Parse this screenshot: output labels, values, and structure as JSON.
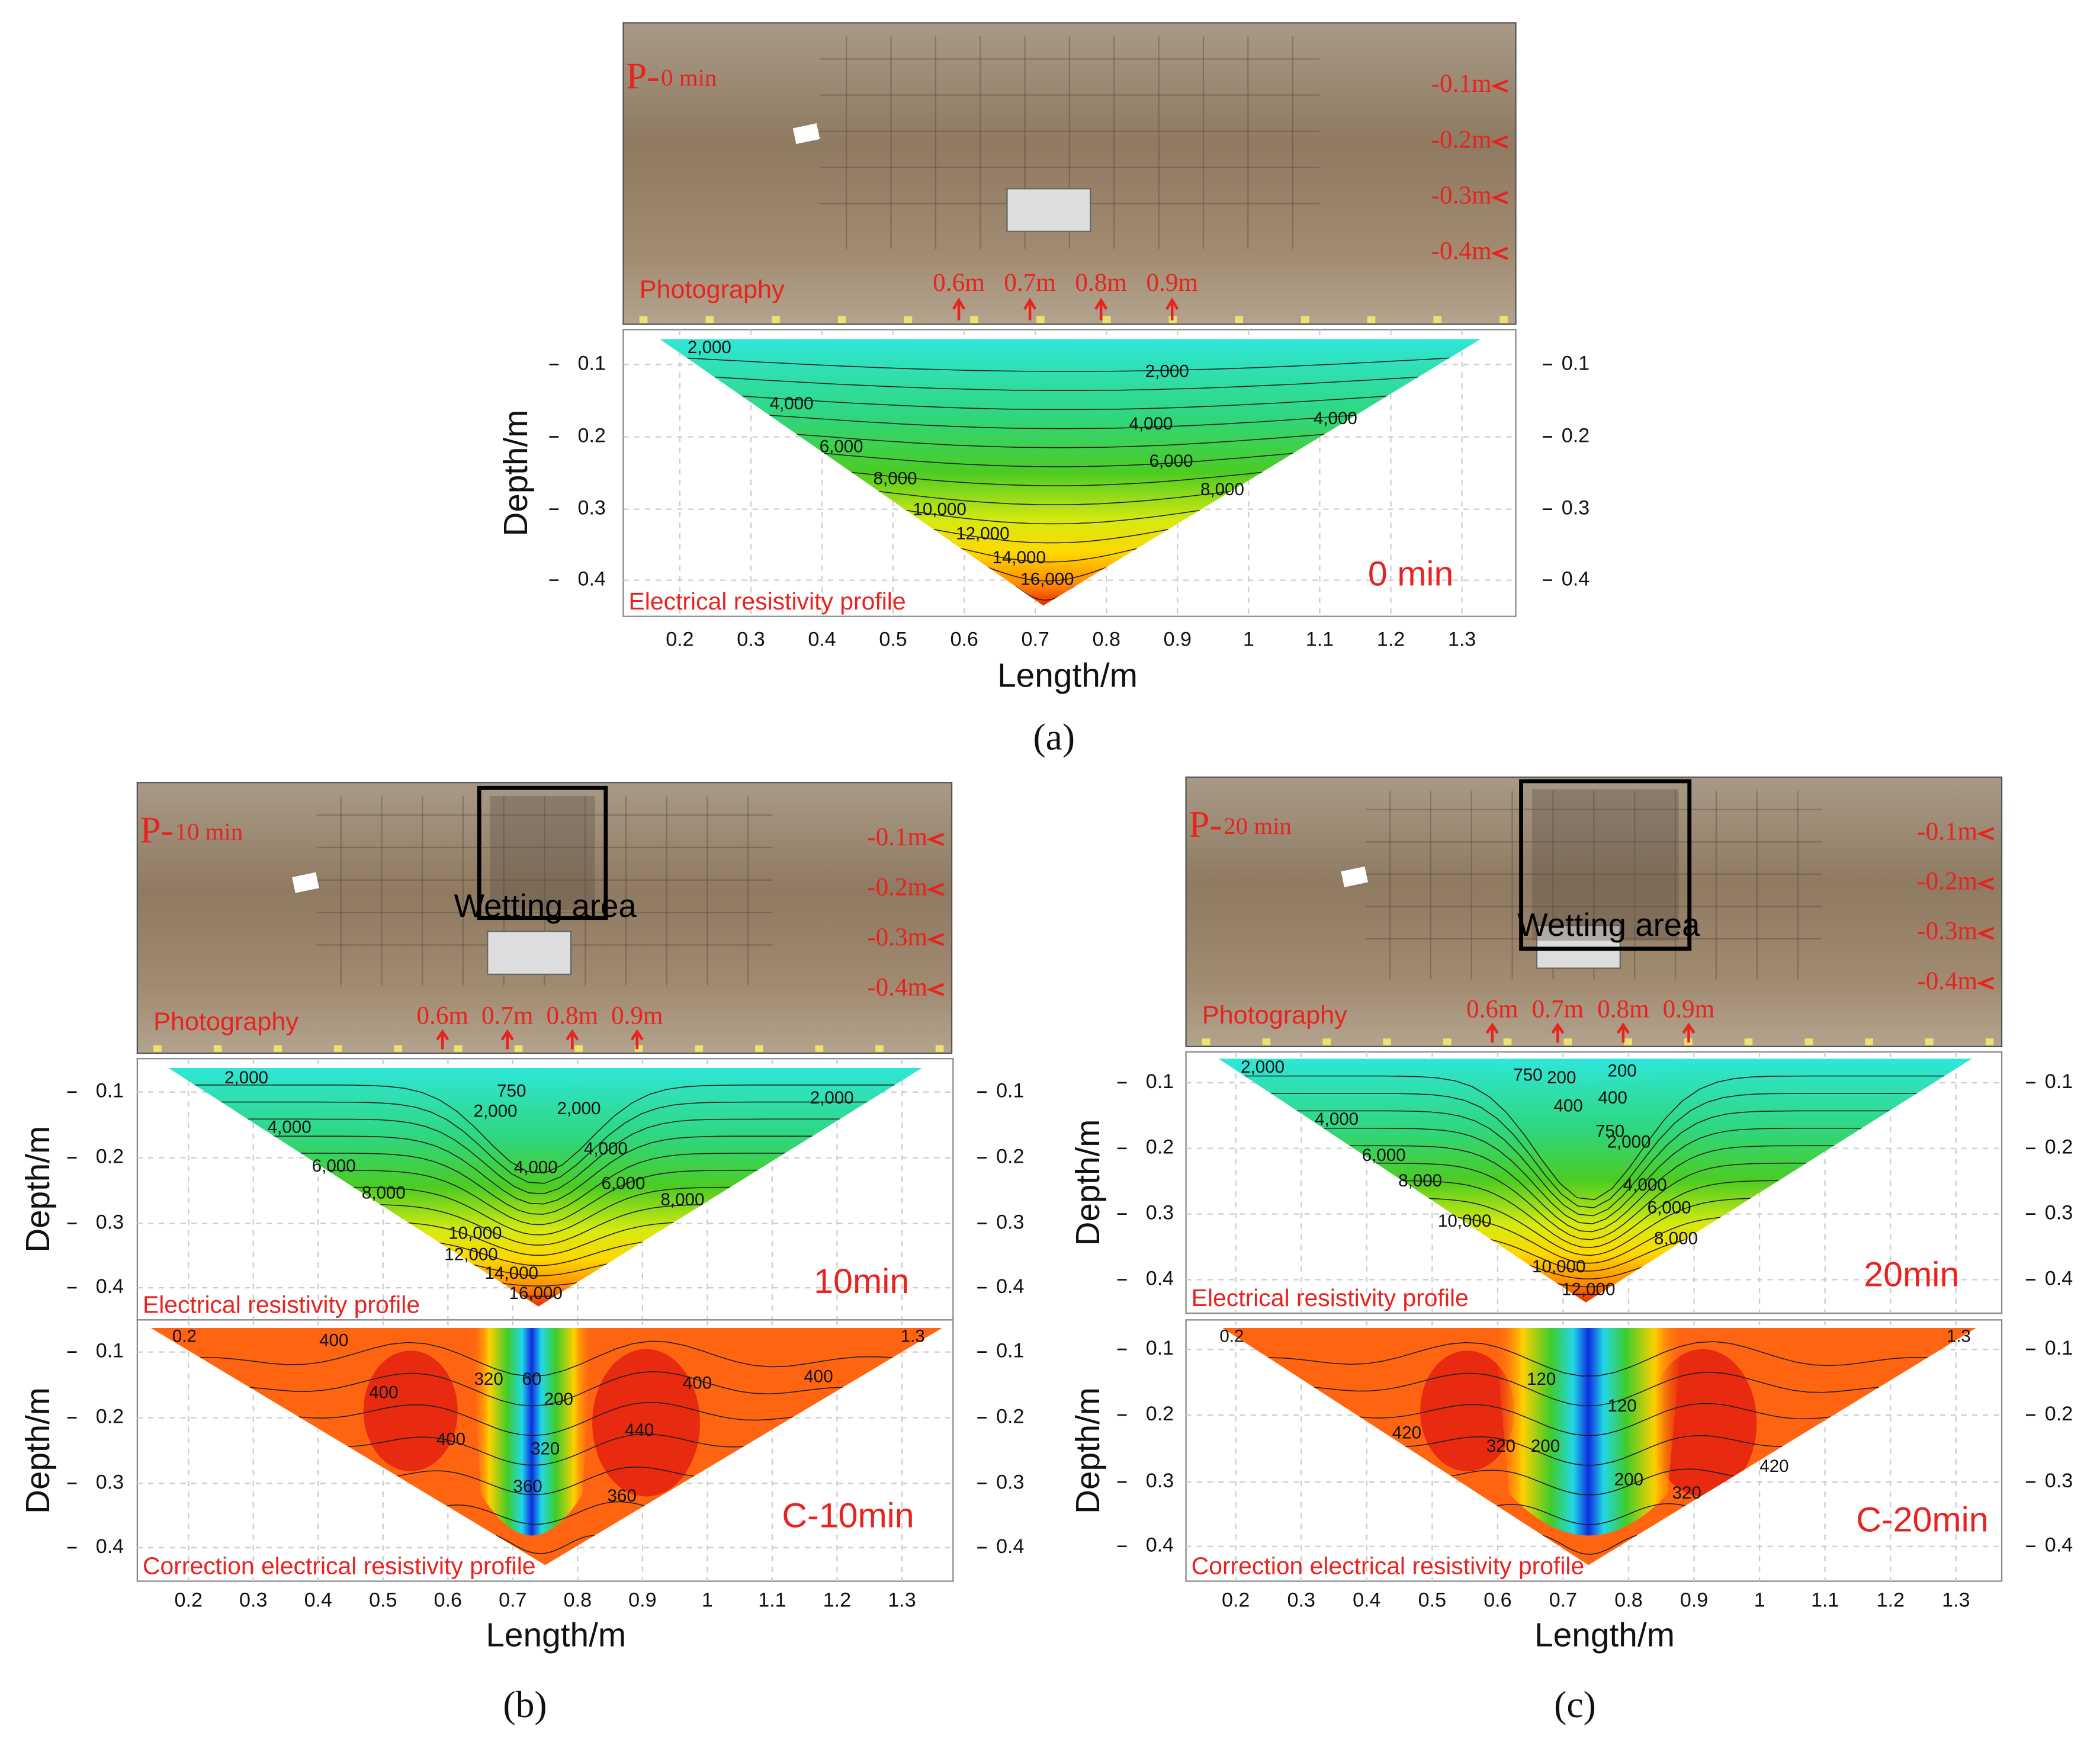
{
  "panels": [
    {
      "caption": "(a)",
      "photo": {
        "tag_prefix": "P-",
        "tag_time": "0 min",
        "depth_marks": [
          "-0.1m",
          "-0.2m",
          "-0.3m",
          "-0.4m"
        ],
        "photography": "Photography",
        "length_marks": [
          "0.6m",
          "0.7m",
          "0.8m",
          "0.9m"
        ]
      },
      "profiles": [
        {
          "label": "Electrical resistivity profile",
          "time": "0 min",
          "yticks": [
            "0.1",
            "0.2",
            "0.3",
            "0.4"
          ],
          "contours": [
            "2,000",
            "2,000",
            "4,000",
            "4,000",
            "4,000",
            "6,000",
            "6,000",
            "8,000",
            "8,000",
            "10,000",
            "12,000",
            "14,000",
            "16,000"
          ]
        }
      ],
      "y_title": "Depth/m",
      "xticks": [
        "0.2",
        "0.3",
        "0.4",
        "0.5",
        "0.6",
        "0.7",
        "0.8",
        "0.9",
        "1",
        "1.1",
        "1.2",
        "1.3"
      ],
      "x_title": "Length/m"
    },
    {
      "caption": "(b)",
      "photo": {
        "tag_prefix": "P-",
        "tag_time": "10 min",
        "depth_marks": [
          "-0.1m",
          "-0.2m",
          "-0.3m",
          "-0.4m"
        ],
        "photography": "Photography",
        "length_marks": [
          "0.6m",
          "0.7m",
          "0.8m",
          "0.9m"
        ],
        "wetting": "Wetting area"
      },
      "profiles": [
        {
          "label": "Electrical resistivity profile",
          "time": "10min",
          "yticks": [
            "0.1",
            "0.2",
            "0.3",
            "0.4"
          ],
          "contours": [
            "2,000",
            "750",
            "2,000",
            "2,000",
            "2,000",
            "4,000",
            "4,000",
            "4,000",
            "6,000",
            "6,000",
            "8,000",
            "8,000",
            "10,000",
            "12,000",
            "14,000",
            "16,000"
          ]
        },
        {
          "label": "Correction electrical resistivity profile",
          "time": "C-10min",
          "yticks": [
            "0.1",
            "0.2",
            "0.3",
            "0.4"
          ],
          "contours": [
            "0.2",
            "1.3",
            "400",
            "400",
            "320",
            "60",
            "200",
            "400",
            "400",
            "400",
            "320",
            "440",
            "360",
            "360"
          ]
        }
      ],
      "y_title": "Depth/m",
      "xticks": [
        "0.2",
        "0.3",
        "0.4",
        "0.5",
        "0.6",
        "0.7",
        "0.8",
        "0.9",
        "1",
        "1.1",
        "1.2",
        "1.3"
      ],
      "x_title": "Length/m"
    },
    {
      "caption": "(c)",
      "photo": {
        "tag_prefix": "P-",
        "tag_time": "20 min",
        "depth_marks": [
          "-0.1m",
          "-0.2m",
          "-0.3m",
          "-0.4m"
        ],
        "photography": "Photography",
        "length_marks": [
          "0.6m",
          "0.7m",
          "0.8m",
          "0.9m"
        ],
        "wetting": "Wetting area"
      },
      "profiles": [
        {
          "label": "Electrical resistivity profile",
          "time": "20min",
          "yticks": [
            "0.1",
            "0.2",
            "0.3",
            "0.4"
          ],
          "contours": [
            "2,000",
            "750",
            "200",
            "400",
            "200",
            "400",
            "750",
            "2,000",
            "4,000",
            "4,000",
            "6,000",
            "6,000",
            "8,000",
            "8,000",
            "10,000",
            "10,000",
            "12,000"
          ]
        },
        {
          "label": "Correction electrical resistivity profile",
          "time": "C-20min",
          "yticks": [
            "0.1",
            "0.2",
            "0.3",
            "0.4"
          ],
          "contours": [
            "0.2",
            "1.3",
            "120",
            "120",
            "420",
            "320",
            "200",
            "200",
            "320",
            "420"
          ]
        }
      ],
      "y_title": "Depth/m",
      "xticks": [
        "0.2",
        "0.3",
        "0.4",
        "0.5",
        "0.6",
        "0.7",
        "0.8",
        "0.9",
        "1",
        "1.1",
        "1.2",
        "1.3"
      ],
      "x_title": "Length/m"
    }
  ]
}
